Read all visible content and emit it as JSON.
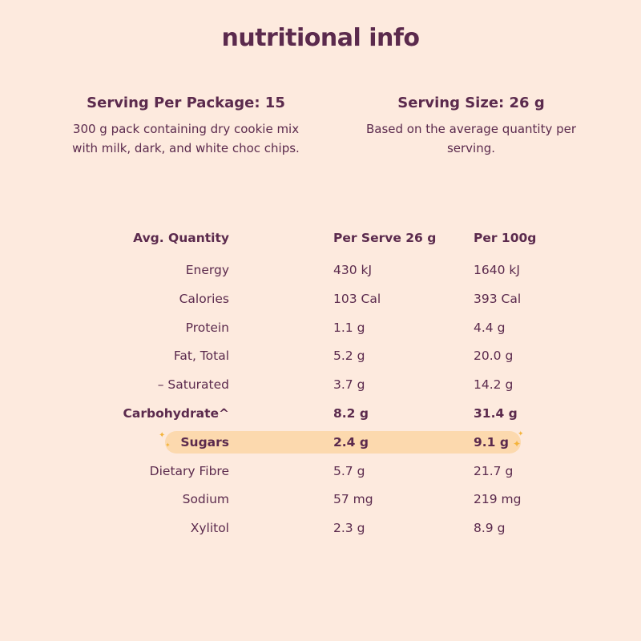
{
  "title": "nutritional info",
  "serving_package": {
    "heading": "Serving Per Package: 15",
    "description": "300 g pack containing dry cookie mix with milk, dark, and white choc chips."
  },
  "serving_size": {
    "heading": "Serving Size: 26 g",
    "description": "Based on the average quantity per serving."
  },
  "table": {
    "headers": [
      "Avg. Quantity",
      "Per Serve 26 g",
      "Per 100g"
    ],
    "rows": [
      {
        "label": "Energy",
        "per_serve": "430 kJ",
        "per_100g": "1640 kJ"
      },
      {
        "label": "Calories",
        "per_serve": "103 Cal",
        "per_100g": "393 Cal"
      },
      {
        "label": "Protein",
        "per_serve": "1.1 g",
        "per_100g": "4.4 g"
      },
      {
        "label": "Fat, Total",
        "per_serve": "5.2 g",
        "per_100g": "20.0 g"
      },
      {
        "label": "– Saturated",
        "per_serve": "3.7 g",
        "per_100g": "14.2 g"
      },
      {
        "label": "Carbohydrate^",
        "per_serve": "8.2 g",
        "per_100g": "31.4 g"
      },
      {
        "label": "Sugars",
        "per_serve": "2.4 g",
        "per_100g": "9.1 g"
      },
      {
        "label": "Dietary Fibre",
        "per_serve": "5.7 g",
        "per_100g": "21.7 g"
      },
      {
        "label": "Sodium",
        "per_serve": "57 mg",
        "per_100g": "219 mg"
      },
      {
        "label": "Xylitol",
        "per_serve": "2.3 g",
        "per_100g": "8.9 g"
      }
    ]
  },
  "colors": {
    "background": "#fdeade",
    "text": "#5b2a4d",
    "highlight": "#fcd9ae",
    "sparkle": "#f4b43c"
  },
  "icons": [
    "sparkle-icon"
  ]
}
